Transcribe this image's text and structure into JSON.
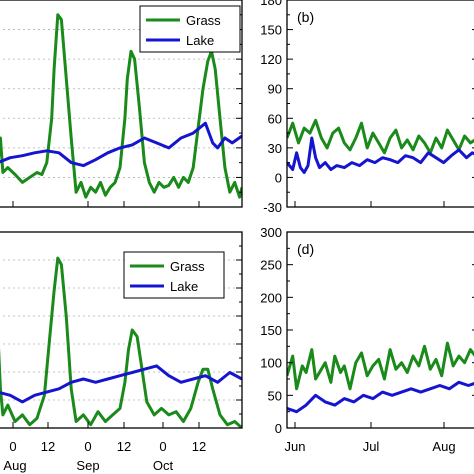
{
  "colors": {
    "grass": "#1a8a1a",
    "lake": "#1515d0",
    "grid": "#b0b0b0"
  },
  "chart_data": [
    {
      "id": "a",
      "type": "line",
      "panel_label": "",
      "xlabel": "",
      "ylabel": "",
      "x_tick_labels": [],
      "ylim": [
        -30,
        180
      ],
      "y_ticks": [],
      "grid": true,
      "legend": "top-right",
      "series": [
        {
          "name": "Grass",
          "color": "#1a8a1a",
          "x": [
            0.0,
            0.01,
            0.02,
            0.04,
            0.07,
            0.1,
            0.13,
            0.16,
            0.18,
            0.2,
            0.22,
            0.23,
            0.245,
            0.26,
            0.28,
            0.3,
            0.32,
            0.34,
            0.36,
            0.38,
            0.4,
            0.42,
            0.44,
            0.46,
            0.48,
            0.5,
            0.52,
            0.53,
            0.545,
            0.56,
            0.58,
            0.6,
            0.62,
            0.64,
            0.66,
            0.68,
            0.7,
            0.72,
            0.74,
            0.76,
            0.78,
            0.8,
            0.82,
            0.84,
            0.86,
            0.875,
            0.89,
            0.91,
            0.93,
            0.95,
            0.97,
            0.99,
            1.0
          ],
          "y": [
            15,
            40,
            5,
            10,
            3,
            -5,
            0,
            5,
            3,
            15,
            60,
            110,
            165,
            160,
            100,
            40,
            -15,
            -5,
            -20,
            -10,
            -15,
            -5,
            -18,
            -10,
            -5,
            10,
            60,
            100,
            128,
            120,
            70,
            15,
            -5,
            -15,
            -5,
            -10,
            -8,
            0,
            -10,
            0,
            -5,
            10,
            50,
            90,
            118,
            128,
            110,
            60,
            10,
            -15,
            -5,
            -20,
            -10
          ]
        },
        {
          "name": "Lake",
          "color": "#1515d0",
          "x": [
            0.0,
            0.05,
            0.1,
            0.15,
            0.2,
            0.25,
            0.3,
            0.35,
            0.4,
            0.45,
            0.5,
            0.55,
            0.6,
            0.65,
            0.7,
            0.75,
            0.8,
            0.85,
            0.88,
            0.9,
            0.93,
            0.96,
            1.0
          ],
          "y": [
            15,
            20,
            22,
            25,
            27,
            25,
            15,
            12,
            18,
            25,
            30,
            33,
            40,
            35,
            30,
            40,
            45,
            55,
            35,
            30,
            40,
            35,
            42
          ]
        }
      ]
    },
    {
      "id": "b",
      "type": "line",
      "panel_label": "(b)",
      "xlabel": "",
      "ylabel": "",
      "x_tick_labels": [],
      "ylim": [
        -30,
        180
      ],
      "y_ticks": [
        -30,
        0,
        30,
        60,
        90,
        120,
        150,
        180
      ],
      "grid": false,
      "legend": "",
      "series": [
        {
          "name": "",
          "color": "#1a8a1a",
          "x": [
            0.0,
            0.03,
            0.06,
            0.09,
            0.12,
            0.15,
            0.18,
            0.21,
            0.24,
            0.27,
            0.3,
            0.33,
            0.36,
            0.39,
            0.42,
            0.45,
            0.48,
            0.51,
            0.54,
            0.57,
            0.6,
            0.63,
            0.66,
            0.69,
            0.72,
            0.75,
            0.78,
            0.81,
            0.84,
            0.87,
            0.9,
            0.93,
            0.96,
            1.0
          ],
          "y": [
            40,
            55,
            35,
            50,
            45,
            58,
            40,
            30,
            45,
            50,
            35,
            28,
            40,
            55,
            30,
            45,
            35,
            25,
            40,
            48,
            30,
            38,
            28,
            42,
            35,
            25,
            40,
            30,
            48,
            38,
            28,
            42,
            35,
            40
          ]
        },
        {
          "name": "",
          "color": "#1515d0",
          "x": [
            0.0,
            0.03,
            0.05,
            0.07,
            0.09,
            0.11,
            0.13,
            0.15,
            0.17,
            0.2,
            0.23,
            0.26,
            0.3,
            0.34,
            0.38,
            0.42,
            0.46,
            0.5,
            0.54,
            0.58,
            0.62,
            0.66,
            0.7,
            0.74,
            0.78,
            0.82,
            0.86,
            0.9,
            0.94,
            0.97,
            1.0
          ],
          "y": [
            15,
            8,
            25,
            10,
            5,
            12,
            40,
            20,
            10,
            15,
            8,
            12,
            10,
            15,
            12,
            18,
            15,
            20,
            18,
            15,
            22,
            20,
            15,
            25,
            20,
            15,
            22,
            28,
            20,
            25,
            22
          ]
        }
      ]
    },
    {
      "id": "c",
      "type": "line",
      "panel_label": "",
      "xlabel": "",
      "ylabel": "",
      "x_tick_labels": [
        "0",
        "12",
        "0",
        "12",
        "0",
        "12"
      ],
      "month_labels": [
        "Aug",
        "Sep",
        "Oct"
      ],
      "ylim": [
        0,
        300
      ],
      "y_ticks": [],
      "grid": true,
      "legend": "top-right",
      "series": [
        {
          "name": "Grass",
          "color": "#1a8a1a",
          "x": [
            0.0,
            0.01,
            0.02,
            0.04,
            0.07,
            0.1,
            0.13,
            0.16,
            0.19,
            0.21,
            0.23,
            0.245,
            0.26,
            0.28,
            0.3,
            0.32,
            0.35,
            0.38,
            0.41,
            0.44,
            0.47,
            0.5,
            0.52,
            0.535,
            0.55,
            0.57,
            0.59,
            0.61,
            0.64,
            0.67,
            0.7,
            0.73,
            0.76,
            0.79,
            0.82,
            0.84,
            0.86,
            0.88,
            0.91,
            0.94,
            0.97,
            1.0
          ],
          "y": [
            140,
            60,
            20,
            35,
            10,
            20,
            5,
            15,
            50,
            130,
            210,
            260,
            250,
            170,
            60,
            10,
            20,
            5,
            25,
            10,
            20,
            30,
            70,
            120,
            150,
            140,
            90,
            40,
            20,
            30,
            20,
            25,
            10,
            30,
            70,
            90,
            90,
            60,
            20,
            5,
            10,
            0
          ]
        },
        {
          "name": "Lake",
          "color": "#1515d0",
          "x": [
            0.0,
            0.05,
            0.1,
            0.15,
            0.2,
            0.25,
            0.3,
            0.35,
            0.4,
            0.45,
            0.5,
            0.55,
            0.6,
            0.65,
            0.7,
            0.75,
            0.8,
            0.85,
            0.9,
            0.95,
            1.0
          ],
          "y": [
            55,
            50,
            40,
            50,
            55,
            60,
            70,
            75,
            70,
            75,
            80,
            85,
            90,
            95,
            80,
            70,
            75,
            80,
            70,
            85,
            75
          ]
        }
      ]
    },
    {
      "id": "d",
      "type": "line",
      "panel_label": "(d)",
      "xlabel": "",
      "ylabel": "",
      "x_tick_labels": [
        "Jun",
        "Jul",
        "Aug"
      ],
      "ylim": [
        0,
        300
      ],
      "y_ticks": [
        0,
        50,
        100,
        150,
        200,
        250,
        300
      ],
      "grid": false,
      "legend": "",
      "series": [
        {
          "name": "",
          "color": "#1a8a1a",
          "x": [
            0.0,
            0.03,
            0.05,
            0.08,
            0.1,
            0.13,
            0.15,
            0.18,
            0.2,
            0.23,
            0.25,
            0.28,
            0.3,
            0.33,
            0.36,
            0.39,
            0.42,
            0.45,
            0.48,
            0.51,
            0.54,
            0.57,
            0.6,
            0.63,
            0.66,
            0.69,
            0.72,
            0.75,
            0.78,
            0.81,
            0.84,
            0.87,
            0.9,
            0.93,
            0.96,
            1.0
          ],
          "y": [
            80,
            110,
            60,
            95,
            85,
            120,
            75,
            90,
            100,
            70,
            110,
            85,
            95,
            60,
            100,
            115,
            80,
            95,
            105,
            75,
            120,
            90,
            100,
            85,
            110,
            95,
            125,
            90,
            105,
            80,
            130,
            95,
            110,
            100,
            120,
            105
          ]
        },
        {
          "name": "",
          "color": "#1515d0",
          "x": [
            0.0,
            0.05,
            0.1,
            0.15,
            0.2,
            0.25,
            0.3,
            0.35,
            0.4,
            0.45,
            0.5,
            0.55,
            0.6,
            0.65,
            0.7,
            0.75,
            0.8,
            0.85,
            0.9,
            0.95,
            1.0
          ],
          "y": [
            30,
            25,
            35,
            50,
            40,
            35,
            45,
            40,
            50,
            45,
            55,
            50,
            55,
            60,
            55,
            60,
            65,
            60,
            70,
            65,
            70
          ]
        }
      ]
    }
  ]
}
